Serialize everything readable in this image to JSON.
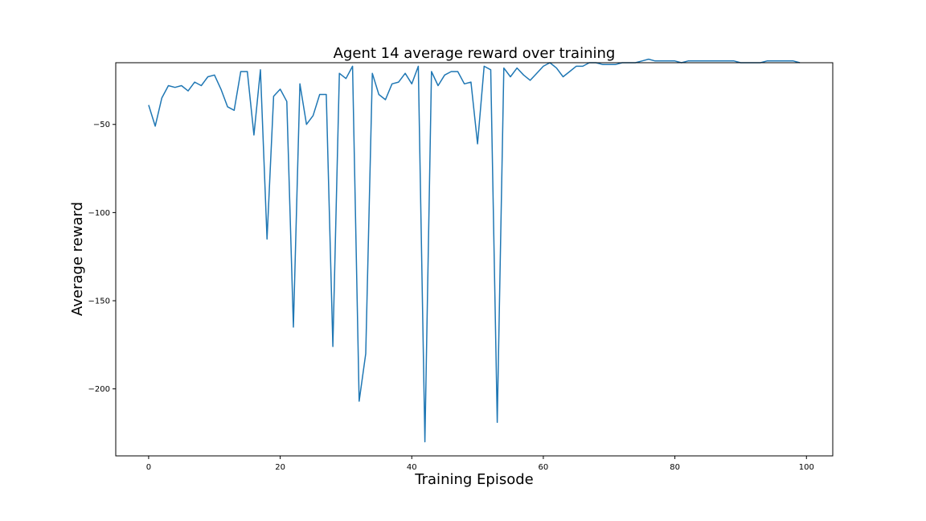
{
  "chart_data": {
    "type": "line",
    "title": "Agent 14 average reward over training",
    "xlabel": "Training Episode",
    "ylabel": "Average reward",
    "xlim": [
      -5,
      104
    ],
    "ylim": [
      -238,
      -15
    ],
    "xticks": [
      0,
      20,
      40,
      60,
      80,
      100
    ],
    "yticks": [
      -50,
      -100,
      -150,
      -200
    ],
    "grid": false,
    "series": [
      {
        "color": "#1f77b4",
        "x": [
          0,
          1,
          2,
          3,
          4,
          5,
          6,
          7,
          8,
          9,
          10,
          11,
          12,
          13,
          14,
          15,
          16,
          17,
          18,
          19,
          20,
          21,
          22,
          23,
          24,
          25,
          26,
          27,
          28,
          29,
          30,
          31,
          32,
          33,
          34,
          35,
          36,
          37,
          38,
          39,
          40,
          41,
          42,
          43,
          44,
          45,
          46,
          47,
          48,
          49,
          50,
          51,
          52,
          53,
          54,
          55,
          56,
          57,
          58,
          59,
          60,
          61,
          62,
          63,
          64,
          65,
          66,
          67,
          68,
          69,
          70,
          71,
          72,
          73,
          74,
          75,
          76,
          77,
          78,
          79,
          80,
          81,
          82,
          83,
          84,
          85,
          86,
          87,
          88,
          89,
          90,
          91,
          92,
          93,
          94,
          95,
          96,
          97,
          98,
          99
        ],
        "values": [
          -39,
          -51,
          -35,
          -28,
          -29,
          -28,
          -31,
          -26,
          -28,
          -23,
          -22,
          -30,
          -40,
          -42,
          -20,
          -20,
          -56,
          -19,
          -115,
          -34,
          -30,
          -37,
          -165,
          -27,
          -50,
          -45,
          -33,
          -33,
          -176,
          -21,
          -24,
          -17,
          -207,
          -180,
          -21,
          -33,
          -36,
          -27,
          -26,
          -21,
          -27,
          -17,
          -230,
          -20,
          -28,
          -22,
          -20,
          -20,
          -27,
          -26,
          -61,
          -17,
          -19,
          -219,
          -18,
          -23,
          -18,
          -22,
          -25,
          -21,
          -17,
          -15,
          -18,
          -23,
          -20,
          -17,
          -17,
          -15,
          -15,
          -16,
          -16,
          -16,
          -15,
          -15,
          -15,
          -14,
          -13,
          -14,
          -14,
          -14,
          -14,
          -15,
          -14,
          -14,
          -14,
          -14,
          -14,
          -14,
          -14,
          -14,
          -15,
          -15,
          -15,
          -15,
          -14,
          -14,
          -14,
          -14,
          -14,
          -15
        ]
      }
    ]
  }
}
